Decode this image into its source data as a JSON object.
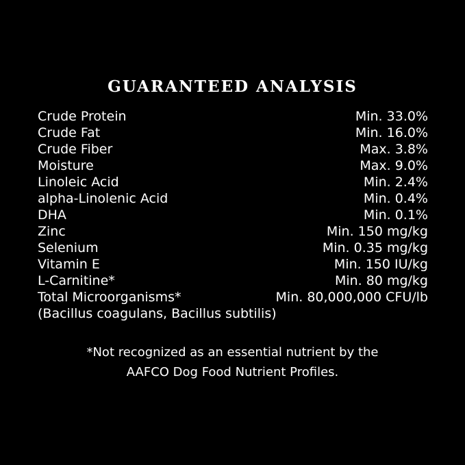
{
  "title": "GUARANTEED ANALYSIS",
  "rows": [
    {
      "name": "Crude Protein",
      "value": "Min. 33.0%"
    },
    {
      "name": "Crude Fat",
      "value": "Min. 16.0%"
    },
    {
      "name": "Crude Fiber",
      "value": "Max. 3.8%"
    },
    {
      "name": "Moisture",
      "value": "Max. 9.0%"
    },
    {
      "name": "Linoleic Acid",
      "value": "Min. 2.4%"
    },
    {
      "name": "alpha-Linolenic Acid",
      "value": "Min. 0.4%"
    },
    {
      "name": "DHA",
      "value": "Min. 0.1%"
    },
    {
      "name": "Zinc",
      "value": "Min. 150 mg/kg"
    },
    {
      "name": "Selenium",
      "value": "Min. 0.35 mg/kg"
    },
    {
      "name": "Vitamin E",
      "value": "Min. 150 IU/kg"
    },
    {
      "name": "L-Carnitine*",
      "value": "Min. 80 mg/kg"
    },
    {
      "name": "Total Microorganisms*",
      "value": "Min. 80,000,000 CFU/lb"
    }
  ],
  "microorganisms_note": "(Bacillus coagulans, Bacillus subtilis)",
  "footnote_line1": "*Not recognized as an essential nutrient by the",
  "footnote_line2": "AAFCO Dog Food Nutrient Profiles."
}
